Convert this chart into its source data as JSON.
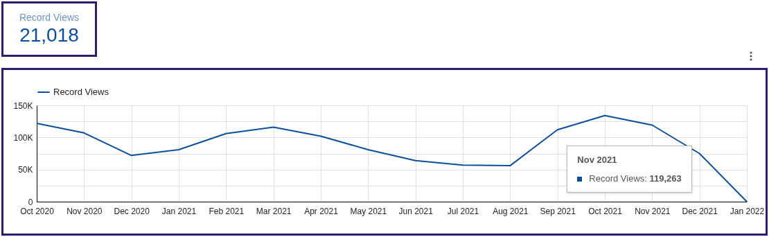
{
  "chart_data": [
    {
      "type": "other",
      "title": "Record Views",
      "annotations": [
        "21,018"
      ]
    },
    {
      "type": "line",
      "categories": [
        "Oct 2020",
        "Nov 2020",
        "Dec 2020",
        "Jan 2021",
        "Feb 2021",
        "Mar 2021",
        "Apr 2021",
        "May 2021",
        "Jun 2021",
        "Jul 2021",
        "Aug 2021",
        "Sep 2021",
        "Oct 2021",
        "Nov 2021",
        "Dec 2021",
        "Jan 2022"
      ],
      "series": [
        {
          "name": "Record Views",
          "color": "#0b4f9c",
          "values": [
            122000,
            107000,
            72000,
            81000,
            106000,
            116000,
            102000,
            81000,
            64000,
            57000,
            56000,
            112000,
            134000,
            119263,
            75000,
            0
          ]
        }
      ],
      "ylim": [
        0,
        150000
      ],
      "yticks": [
        0,
        {
          "value": 25000,
          "label": null
        },
        {
          "value": 50000,
          "label": "50K"
        },
        {
          "value": 75000,
          "label": null
        },
        {
          "value": 100000,
          "label": "100K"
        },
        {
          "value": 125000,
          "label": null
        },
        {
          "value": 150000,
          "label": "150K"
        }
      ],
      "grid": true,
      "legend": "top left",
      "marker": "none",
      "annotations": [
        "Nov 2021",
        "Record Views: 119,263"
      ]
    }
  ]
}
